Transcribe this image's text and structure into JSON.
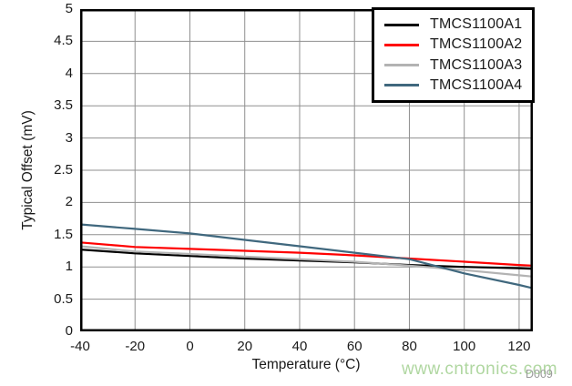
{
  "figure_code": "D009",
  "watermark": {
    "text": "www.cntronics.com"
  },
  "colors": {
    "grid": "#8f8f8f",
    "frame": "#000000",
    "background": "#ffffff",
    "watermark_green": "#b0d7a1",
    "figure_code_gray": "#9a9a9a"
  },
  "chart_data": {
    "type": "line",
    "title": "",
    "xlabel": "Temperature (°C)",
    "ylabel": "Typical Offset (mV)",
    "xlim": [
      -40,
      125
    ],
    "ylim": [
      0,
      5
    ],
    "x_ticks": [
      -40,
      -20,
      0,
      20,
      40,
      60,
      80,
      100,
      120
    ],
    "y_ticks": [
      0,
      0.5,
      1,
      1.5,
      2,
      2.5,
      3,
      3.5,
      4,
      4.5,
      5
    ],
    "grid": true,
    "legend_position": "top-right",
    "x": [
      -40,
      -20,
      0,
      20,
      40,
      60,
      80,
      100,
      120,
      125
    ],
    "series": [
      {
        "name": "TMCS1100A1",
        "color": "#000000",
        "values": [
          1.27,
          1.21,
          1.17,
          1.13,
          1.1,
          1.07,
          1.03,
          1.0,
          0.98,
          0.97
        ]
      },
      {
        "name": "TMCS1100A2",
        "color": "#ff0000",
        "values": [
          1.38,
          1.31,
          1.28,
          1.25,
          1.22,
          1.18,
          1.13,
          1.08,
          1.03,
          1.02
        ]
      },
      {
        "name": "TMCS1100A3",
        "color": "#b3b3b3",
        "values": [
          1.32,
          1.24,
          1.2,
          1.16,
          1.12,
          1.08,
          1.02,
          0.95,
          0.87,
          0.85
        ]
      },
      {
        "name": "TMCS1100A4",
        "color": "#40687e",
        "values": [
          1.66,
          1.59,
          1.52,
          1.42,
          1.32,
          1.22,
          1.12,
          0.9,
          0.72,
          0.67
        ]
      }
    ]
  }
}
